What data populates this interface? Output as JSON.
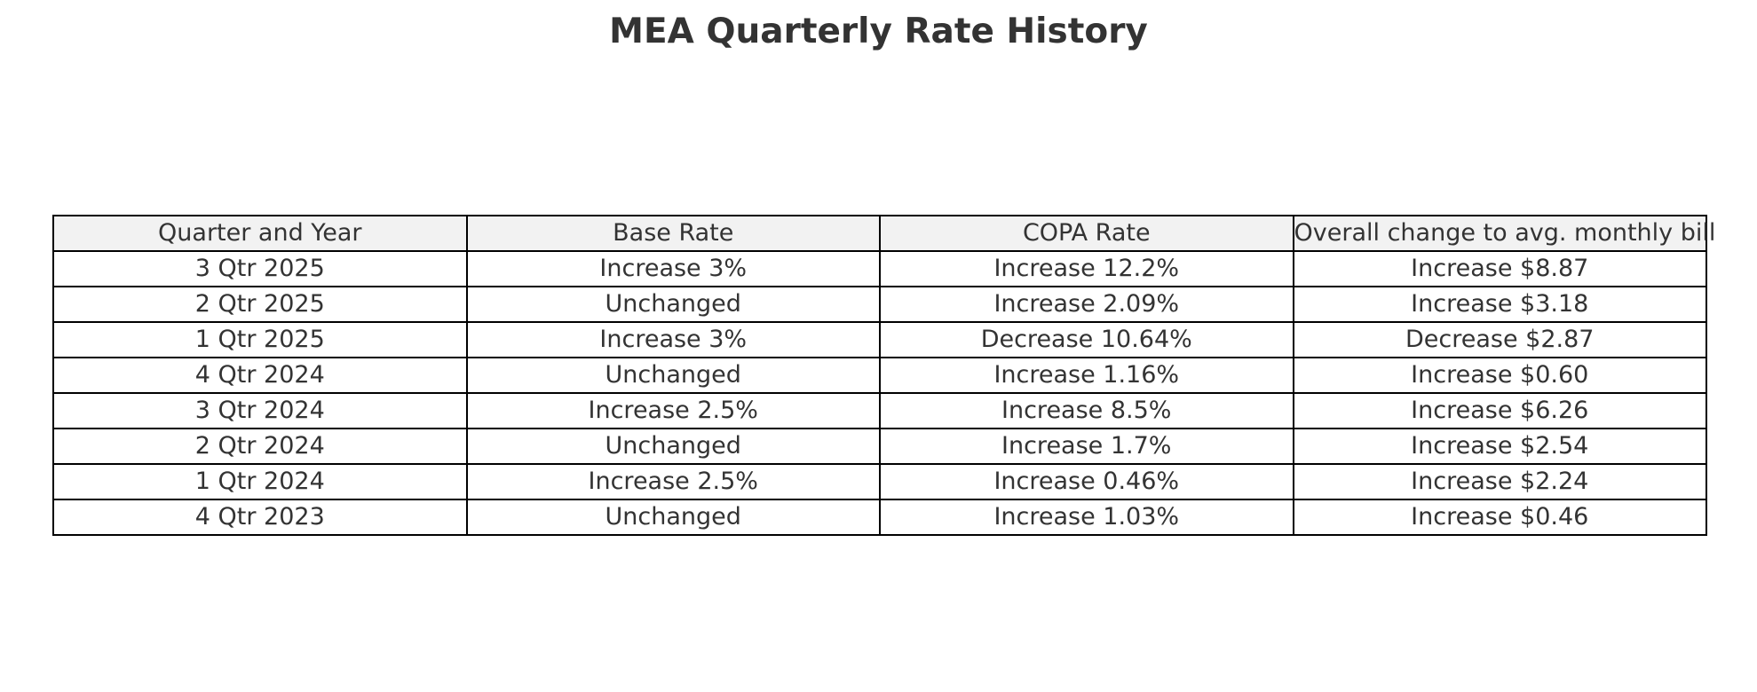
{
  "chart_data": {
    "type": "table",
    "title": "MEA Quarterly Rate History",
    "columns": [
      "Quarter and Year",
      "Base Rate",
      "COPA Rate",
      "Overall change to avg. monthly bill"
    ],
    "rows": [
      [
        "3 Qtr 2025",
        "Increase 3%",
        "Increase 12.2%",
        "Increase $8.87"
      ],
      [
        "2 Qtr 2025",
        "Unchanged",
        "Increase 2.09%",
        "Increase $3.18"
      ],
      [
        "1 Qtr 2025",
        "Increase 3%",
        "Decrease 10.64%",
        "Decrease $2.87"
      ],
      [
        "4 Qtr 2024",
        "Unchanged",
        "Increase 1.16%",
        "Increase $0.60"
      ],
      [
        "3 Qtr 2024",
        "Increase 2.5%",
        "Increase 8.5%",
        "Increase $6.26"
      ],
      [
        "2 Qtr 2024",
        "Unchanged",
        "Increase 1.7%",
        "Increase $2.54"
      ],
      [
        "1 Qtr 2024",
        "Increase 2.5%",
        "Increase 0.46%",
        "Increase $2.24"
      ],
      [
        "4 Qtr 2023",
        "Unchanged",
        "Increase 1.03%",
        "Increase $0.46"
      ]
    ],
    "header_background": "#f2f2f2",
    "border_color": "#000000",
    "text_color": "#333333"
  }
}
